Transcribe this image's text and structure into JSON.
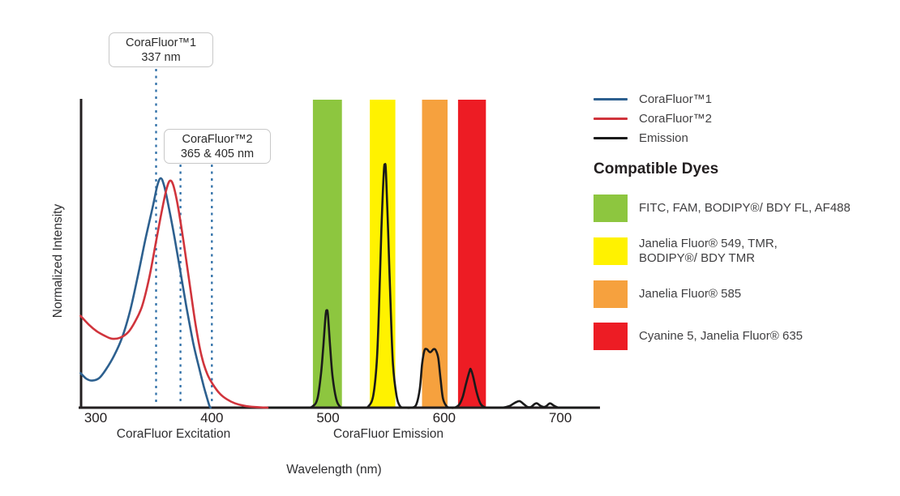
{
  "figure": {
    "y_axis_label": "Normalized Intensity",
    "x_axis_label": "Wavelength (nm)",
    "excitation_section_label": "CoraFluor Excitation",
    "emission_section_label": "CoraFluor Emission",
    "annotations": [
      {
        "title": "CoraFluor™1",
        "subtitle": "337 nm"
      },
      {
        "title": "CoraFluor™2",
        "subtitle": "365 & 405 nm"
      }
    ]
  },
  "legend": {
    "items": [
      {
        "label": "CoraFluor™1",
        "color": "#2d608f"
      },
      {
        "label": "CoraFluor™2",
        "color": "#d0343c"
      },
      {
        "label": "Emission",
        "color": "#1a1a1a"
      }
    ]
  },
  "compatible_dyes": {
    "heading": "Compatible Dyes",
    "rows": [
      {
        "id": "green",
        "color": "#8dc63f",
        "lines": [
          "FITC, FAM, BODIPY®/ BDY FL, AF488"
        ]
      },
      {
        "id": "yellow",
        "color": "#fff200",
        "lines": [
          "Janelia Fluor® 549, TMR,",
          "BODIPY®/ BDY TMR"
        ]
      },
      {
        "id": "orange",
        "color": "#f6a13e",
        "lines": [
          "Janelia Fluor® 585"
        ]
      },
      {
        "id": "red",
        "color": "#ed1c24",
        "lines": [
          "Cyanine 5, Janelia Fluor® 635"
        ]
      }
    ]
  },
  "chart_data": {
    "type": "line",
    "title": "CoraFluor excitation and emission spectra with compatible dye filter bands",
    "xlabel": "Wavelength (nm)",
    "ylabel": "Normalized Intensity",
    "x_axis": {
      "range": [
        300,
        700
      ],
      "ticks": [
        300,
        400,
        500,
        600,
        700
      ]
    },
    "y_axis": {
      "range": [
        0,
        1
      ],
      "ticks": []
    },
    "grid": false,
    "legend_position": "right",
    "excitation_maxima_labels": {
      "CoraFluor1_nm": 337,
      "CoraFluor2_nm": [
        365,
        405
      ]
    },
    "annotation_lines": [
      {
        "label": "337 nm",
        "x_nm": 352
      },
      {
        "label": "365 nm",
        "x_nm": 373
      },
      {
        "label": "405 nm",
        "x_nm": 400
      }
    ],
    "emission_filter_bands": [
      {
        "id": "green",
        "color": "#8dc63f",
        "nm_range": [
          487,
          512
        ],
        "dyes": "FITC, FAM, BODIPY®/ BDY FL, AF488"
      },
      {
        "id": "yellow",
        "color": "#fff200",
        "nm_range": [
          536,
          558
        ],
        "dyes": "Janelia Fluor® 549, TMR, BODIPY®/ BDY TMR"
      },
      {
        "id": "orange",
        "color": "#f6a13e",
        "nm_range": [
          581,
          603
        ],
        "dyes": "Janelia Fluor® 585"
      },
      {
        "id": "red",
        "color": "#ed1c24",
        "nm_range": [
          612,
          636
        ],
        "dyes": "Cyanine 5, Janelia Fluor® 635"
      }
    ],
    "series": [
      {
        "name": "CoraFluor™1",
        "color": "#2d608f",
        "points": [
          [
            287,
            0.112
          ],
          [
            292,
            0.094
          ],
          [
            297,
            0.088
          ],
          [
            303,
            0.096
          ],
          [
            309,
            0.125
          ],
          [
            316,
            0.17
          ],
          [
            323,
            0.23
          ],
          [
            330,
            0.32
          ],
          [
            337,
            0.44
          ],
          [
            343,
            0.55
          ],
          [
            349,
            0.65
          ],
          [
            353,
            0.72
          ],
          [
            356,
            0.745
          ],
          [
            359,
            0.72
          ],
          [
            363,
            0.65
          ],
          [
            368,
            0.55
          ],
          [
            373,
            0.44
          ],
          [
            378,
            0.33
          ],
          [
            384,
            0.21
          ],
          [
            389,
            0.13
          ],
          [
            393,
            0.07
          ],
          [
            396,
            0.03
          ],
          [
            398,
            0.005
          ],
          [
            399,
            0
          ]
        ]
      },
      {
        "name": "CoraFluor™2",
        "color": "#d0343c",
        "points": [
          [
            287,
            0.298
          ],
          [
            294,
            0.27
          ],
          [
            301,
            0.248
          ],
          [
            308,
            0.233
          ],
          [
            314,
            0.224
          ],
          [
            321,
            0.227
          ],
          [
            328,
            0.245
          ],
          [
            334,
            0.28
          ],
          [
            340,
            0.33
          ],
          [
            346,
            0.42
          ],
          [
            352,
            0.54
          ],
          [
            357,
            0.64
          ],
          [
            361,
            0.71
          ],
          [
            364,
            0.737
          ],
          [
            367,
            0.72
          ],
          [
            371,
            0.65
          ],
          [
            376,
            0.53
          ],
          [
            381,
            0.4
          ],
          [
            386,
            0.27
          ],
          [
            391,
            0.17
          ],
          [
            396,
            0.11
          ],
          [
            401,
            0.075
          ],
          [
            407,
            0.045
          ],
          [
            413,
            0.027
          ],
          [
            420,
            0.014
          ],
          [
            428,
            0.006
          ],
          [
            437,
            0.002
          ],
          [
            448,
            0
          ]
        ]
      },
      {
        "name": "Emission",
        "color": "#1a1a1a",
        "points": [
          [
            450,
            0
          ],
          [
            480,
            0
          ],
          [
            487,
            0.005
          ],
          [
            491,
            0.03
          ],
          [
            494,
            0.11
          ],
          [
            496,
            0.2
          ],
          [
            498,
            0.3
          ],
          [
            499,
            0.316
          ],
          [
            500,
            0.3
          ],
          [
            502,
            0.19
          ],
          [
            504,
            0.1
          ],
          [
            507,
            0.03
          ],
          [
            510,
            0.005
          ],
          [
            514,
            0
          ],
          [
            530,
            0
          ],
          [
            535,
            0.005
          ],
          [
            539,
            0.04
          ],
          [
            542,
            0.15
          ],
          [
            544,
            0.33
          ],
          [
            546,
            0.58
          ],
          [
            548,
            0.76
          ],
          [
            549,
            0.79
          ],
          [
            550,
            0.76
          ],
          [
            552,
            0.55
          ],
          [
            554,
            0.32
          ],
          [
            556,
            0.14
          ],
          [
            559,
            0.04
          ],
          [
            562,
            0.005
          ],
          [
            566,
            0
          ],
          [
            572,
            0
          ],
          [
            576,
            0.01
          ],
          [
            579,
            0.06
          ],
          [
            581,
            0.14
          ],
          [
            583,
            0.185
          ],
          [
            585,
            0.19
          ],
          [
            588,
            0.18
          ],
          [
            591,
            0.19
          ],
          [
            593,
            0.185
          ],
          [
            595,
            0.16
          ],
          [
            597,
            0.09
          ],
          [
            599,
            0.03
          ],
          [
            602,
            0.005
          ],
          [
            605,
            0
          ],
          [
            609,
            0
          ],
          [
            613,
            0.01
          ],
          [
            616,
            0.035
          ],
          [
            619,
            0.08
          ],
          [
            622,
            0.12
          ],
          [
            623,
            0.124
          ],
          [
            625,
            0.1
          ],
          [
            628,
            0.05
          ],
          [
            631,
            0.015
          ],
          [
            634,
            0.003
          ],
          [
            638,
            0
          ],
          [
            650,
            0
          ],
          [
            656,
            0.005
          ],
          [
            661,
            0.016
          ],
          [
            665,
            0.021
          ],
          [
            669,
            0.01
          ],
          [
            672,
            0.002
          ],
          [
            675,
            0.003
          ],
          [
            678,
            0.012
          ],
          [
            680,
            0.014
          ],
          [
            683,
            0.006
          ],
          [
            686,
            0.002
          ],
          [
            688,
            0.005
          ],
          [
            691,
            0.014
          ],
          [
            694,
            0.008
          ],
          [
            697,
            0.002
          ],
          [
            702,
            0
          ],
          [
            732,
            0
          ]
        ]
      }
    ]
  }
}
